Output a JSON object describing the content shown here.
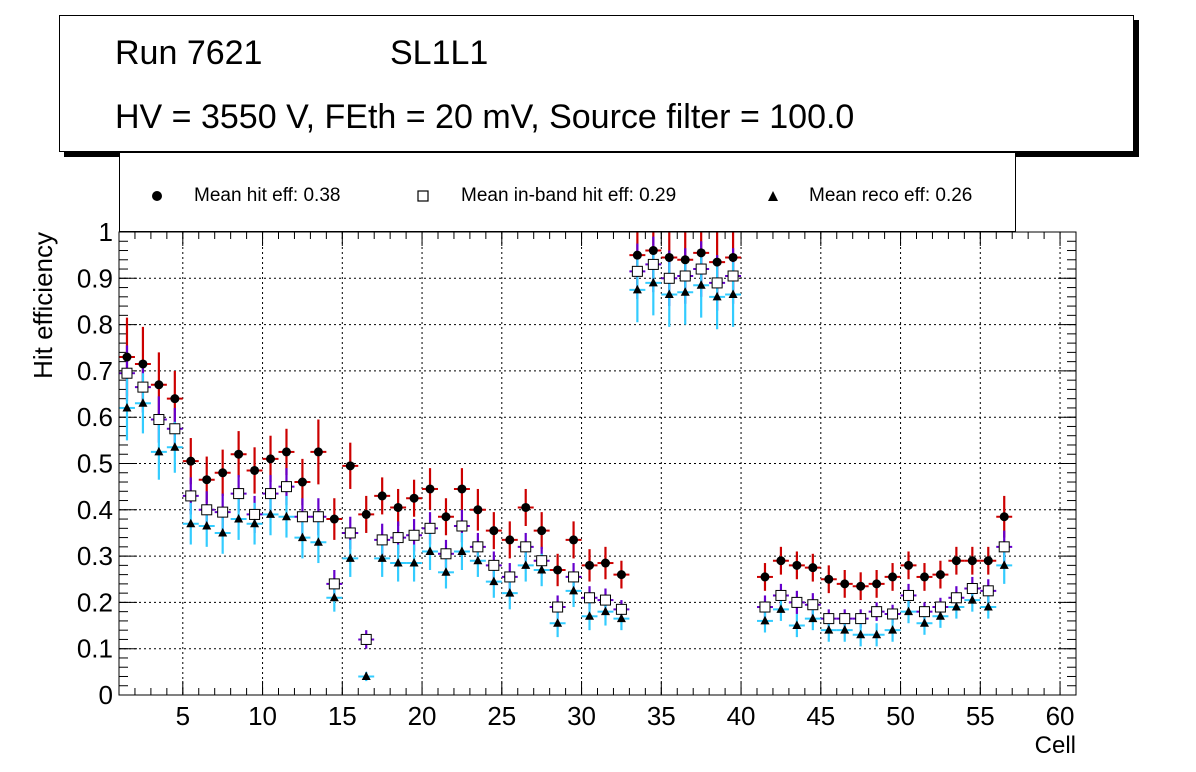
{
  "title": {
    "run": "Run 7621",
    "layer": "SL1L1",
    "conditions": "HV = 3550 V, FEth = 20 mV, Source filter = 100.0"
  },
  "legend": [
    {
      "label": "Mean hit  eff: 0.38",
      "marker": "circle"
    },
    {
      "label": "Mean in-band hit eff: 0.29",
      "marker": "open-square"
    },
    {
      "label": "Mean reco eff: 0.26",
      "marker": "triangle"
    }
  ],
  "colors": {
    "hit_err": "#cc0000",
    "inband_err": "#6600cc",
    "reco_err": "#33ccff",
    "grid": "#000000"
  },
  "chart_data": {
    "type": "scatter",
    "title": "Run 7621 SL1L1",
    "xlabel": "Cell",
    "ylabel": "Hit efficiency",
    "xlim": [
      1,
      61
    ],
    "ylim": [
      0,
      1
    ],
    "xticks": [
      5,
      10,
      15,
      20,
      25,
      30,
      35,
      40,
      45,
      50,
      55,
      60
    ],
    "yticks": [
      0,
      0.1,
      0.2,
      0.3,
      0.4,
      0.5,
      0.6,
      0.7,
      0.8,
      0.9,
      1
    ],
    "grid": true,
    "series": [
      {
        "name": "Mean hit eff",
        "marker": "circle",
        "x": [
          1,
          2,
          3,
          4,
          5,
          6,
          7,
          8,
          9,
          10,
          11,
          12,
          13,
          14,
          15,
          16,
          17,
          18,
          19,
          20,
          21,
          22,
          23,
          24,
          25,
          26,
          27,
          28,
          29,
          30,
          31,
          32,
          33,
          34,
          35,
          36,
          37,
          38,
          39,
          41,
          42,
          43,
          44,
          45,
          46,
          47,
          48,
          49,
          50,
          51,
          52,
          53,
          54,
          55,
          56
        ],
        "values": [
          0.73,
          0.715,
          0.67,
          0.64,
          0.505,
          0.465,
          0.48,
          0.52,
          0.485,
          0.51,
          0.525,
          0.46,
          0.525,
          0.38,
          0.495,
          0.39,
          0.43,
          0.405,
          0.425,
          0.445,
          0.385,
          0.445,
          0.4,
          0.355,
          0.335,
          0.405,
          0.355,
          0.27,
          0.335,
          0.28,
          0.285,
          0.26,
          0.95,
          0.96,
          0.945,
          0.94,
          0.955,
          0.935,
          0.945,
          0.255,
          0.29,
          0.28,
          0.275,
          0.25,
          0.24,
          0.235,
          0.24,
          0.255,
          0.28,
          0.255,
          0.26,
          0.29,
          0.29,
          0.29,
          0.385
        ],
        "errors": [
          0.085,
          0.08,
          0.07,
          0.06,
          0.05,
          0.05,
          0.05,
          0.05,
          0.05,
          0.05,
          0.05,
          0.05,
          0.07,
          0.045,
          0.05,
          0.04,
          0.04,
          0.04,
          0.04,
          0.045,
          0.04,
          0.045,
          0.045,
          0.04,
          0.04,
          0.04,
          0.04,
          0.035,
          0.04,
          0.035,
          0.035,
          0.03,
          0.07,
          0.07,
          0.07,
          0.07,
          0.07,
          0.07,
          0.07,
          0.03,
          0.03,
          0.03,
          0.03,
          0.03,
          0.03,
          0.03,
          0.03,
          0.03,
          0.03,
          0.03,
          0.03,
          0.03,
          0.03,
          0.03,
          0.045
        ]
      },
      {
        "name": "Mean in-band hit eff",
        "marker": "open-square",
        "x": [
          1,
          2,
          3,
          4,
          5,
          6,
          7,
          8,
          9,
          10,
          11,
          12,
          13,
          14,
          15,
          16,
          17,
          18,
          19,
          20,
          21,
          22,
          23,
          24,
          25,
          26,
          27,
          28,
          29,
          30,
          31,
          32,
          33,
          34,
          35,
          36,
          37,
          38,
          39,
          41,
          42,
          43,
          44,
          45,
          46,
          47,
          48,
          49,
          50,
          51,
          52,
          53,
          54,
          55,
          56
        ],
        "values": [
          0.695,
          0.665,
          0.595,
          0.575,
          0.43,
          0.4,
          0.395,
          0.435,
          0.39,
          0.435,
          0.45,
          0.385,
          0.385,
          0.24,
          0.35,
          0.12,
          0.335,
          0.34,
          0.345,
          0.36,
          0.305,
          0.365,
          0.32,
          0.28,
          0.255,
          0.32,
          0.29,
          0.19,
          0.255,
          0.21,
          0.205,
          0.185,
          0.915,
          0.93,
          0.9,
          0.905,
          0.92,
          0.89,
          0.905,
          0.19,
          0.215,
          0.2,
          0.195,
          0.165,
          0.165,
          0.165,
          0.18,
          0.175,
          0.215,
          0.18,
          0.19,
          0.21,
          0.23,
          0.225,
          0.32
        ],
        "errors": [
          0.06,
          0.055,
          0.05,
          0.045,
          0.04,
          0.04,
          0.04,
          0.04,
          0.04,
          0.04,
          0.04,
          0.04,
          0.04,
          0.03,
          0.035,
          0.02,
          0.035,
          0.035,
          0.035,
          0.035,
          0.03,
          0.035,
          0.03,
          0.03,
          0.03,
          0.03,
          0.03,
          0.025,
          0.03,
          0.025,
          0.025,
          0.02,
          0.06,
          0.06,
          0.06,
          0.06,
          0.06,
          0.06,
          0.06,
          0.025,
          0.025,
          0.025,
          0.025,
          0.02,
          0.02,
          0.02,
          0.02,
          0.02,
          0.025,
          0.02,
          0.02,
          0.025,
          0.025,
          0.025,
          0.035
        ]
      },
      {
        "name": "Mean reco eff",
        "marker": "triangle",
        "x": [
          1,
          2,
          3,
          4,
          5,
          6,
          7,
          8,
          9,
          10,
          11,
          12,
          13,
          14,
          15,
          16,
          17,
          18,
          19,
          20,
          21,
          22,
          23,
          24,
          25,
          26,
          27,
          28,
          29,
          30,
          31,
          32,
          33,
          34,
          35,
          36,
          37,
          38,
          39,
          41,
          42,
          43,
          44,
          45,
          46,
          47,
          48,
          49,
          50,
          51,
          52,
          53,
          54,
          55,
          56
        ],
        "values": [
          0.62,
          0.63,
          0.525,
          0.535,
          0.37,
          0.365,
          0.35,
          0.38,
          0.37,
          0.39,
          0.385,
          0.34,
          0.33,
          0.21,
          0.295,
          0.04,
          0.295,
          0.285,
          0.285,
          0.31,
          0.265,
          0.31,
          0.29,
          0.245,
          0.22,
          0.28,
          0.27,
          0.155,
          0.225,
          0.17,
          0.18,
          0.165,
          0.875,
          0.89,
          0.865,
          0.87,
          0.885,
          0.86,
          0.865,
          0.16,
          0.185,
          0.15,
          0.165,
          0.14,
          0.14,
          0.13,
          0.13,
          0.14,
          0.18,
          0.155,
          0.17,
          0.19,
          0.205,
          0.19,
          0.28
        ],
        "errors": [
          0.07,
          0.065,
          0.06,
          0.055,
          0.045,
          0.045,
          0.045,
          0.045,
          0.045,
          0.045,
          0.045,
          0.045,
          0.045,
          0.03,
          0.04,
          0.01,
          0.04,
          0.04,
          0.04,
          0.04,
          0.035,
          0.04,
          0.035,
          0.035,
          0.035,
          0.035,
          0.035,
          0.03,
          0.035,
          0.03,
          0.03,
          0.025,
          0.07,
          0.07,
          0.07,
          0.07,
          0.07,
          0.07,
          0.07,
          0.025,
          0.025,
          0.025,
          0.025,
          0.025,
          0.025,
          0.025,
          0.025,
          0.025,
          0.025,
          0.025,
          0.025,
          0.025,
          0.025,
          0.025,
          0.04
        ]
      }
    ]
  }
}
